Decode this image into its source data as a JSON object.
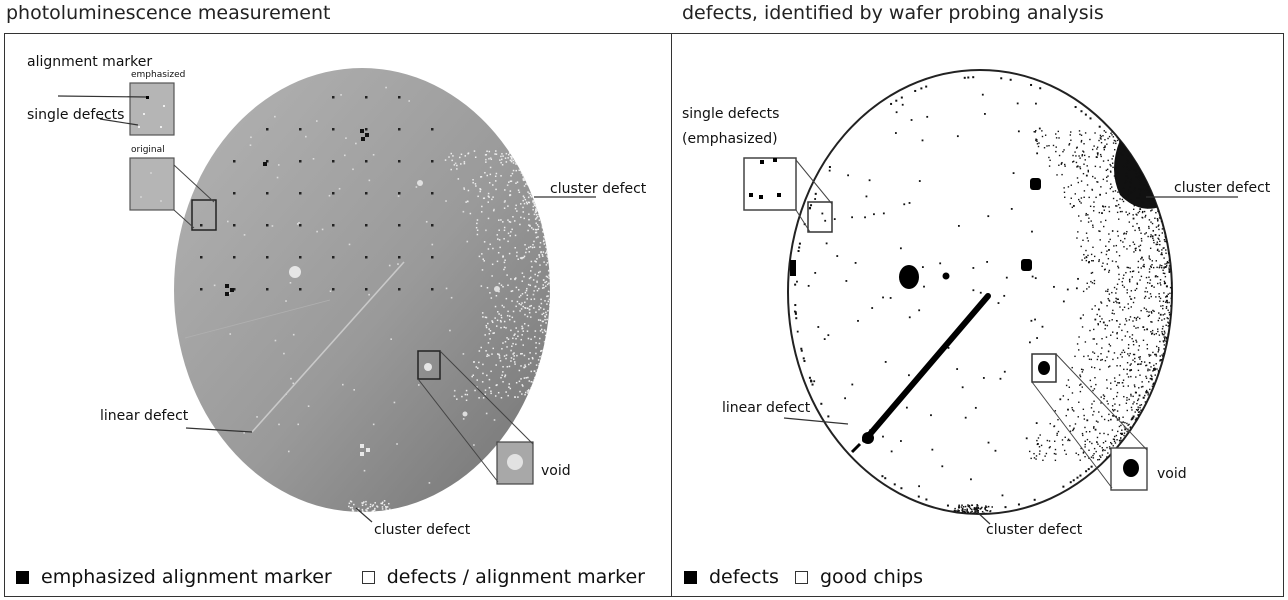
{
  "left": {
    "title": "photoluminescence measurement",
    "labels": {
      "alignment_marker": "alignment marker",
      "single_defects": "single defects",
      "emphasized": "emphasized",
      "original": "original",
      "cluster_defect_right": "cluster defect",
      "linear_defect": "linear defect",
      "void": "void",
      "cluster_defect_bottom": "cluster defect"
    },
    "legend": [
      {
        "symbol": "filled",
        "text": "emphasized alignment marker"
      },
      {
        "symbol": "empty",
        "text": "defects / alignment marker"
      }
    ],
    "colors": {
      "wafer_light": "#a8a8a8",
      "wafer_dark": "#707070"
    }
  },
  "right": {
    "title": "defects, identified by wafer probing analysis",
    "labels": {
      "single_defects": "single defects",
      "emphasized": "(emphasized)",
      "cluster_defect_right": "cluster defect",
      "linear_defect": "linear defect",
      "void": "void",
      "cluster_defect_bottom": "cluster defect"
    },
    "legend": [
      {
        "symbol": "filled",
        "text": "defects"
      },
      {
        "symbol": "empty",
        "text": "good chips"
      }
    ]
  }
}
